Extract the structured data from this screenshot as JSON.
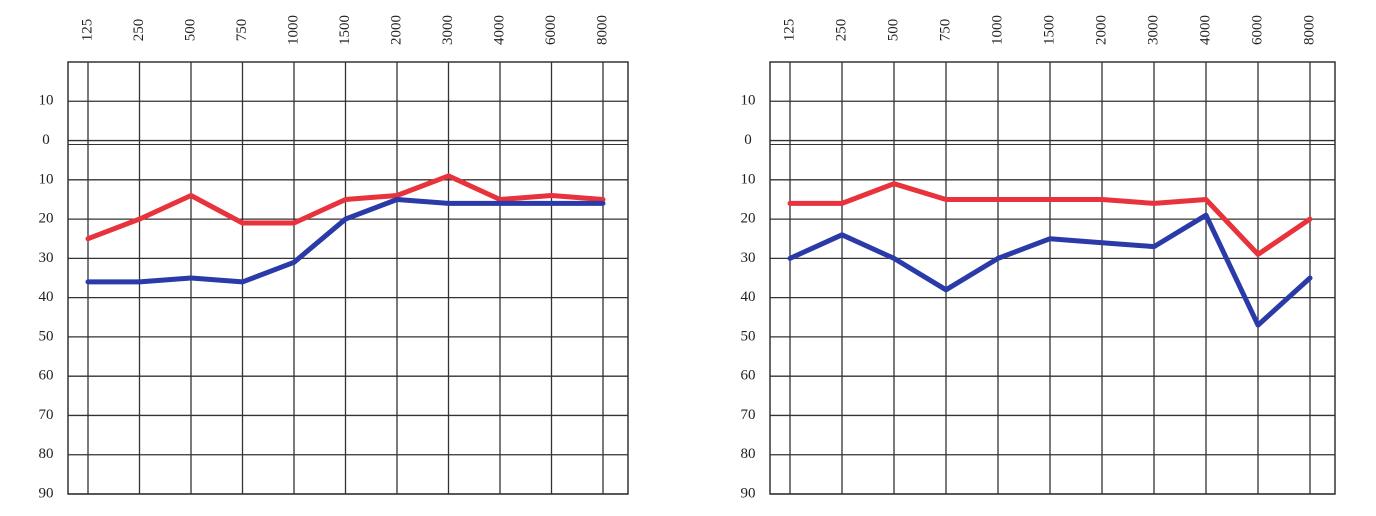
{
  "chart_data": [
    {
      "type": "line",
      "categories": [
        "125",
        "250",
        "500",
        "750",
        "1000",
        "1500",
        "2000",
        "3000",
        "4000",
        "6000",
        "8000"
      ],
      "series": [
        {
          "color": "#e8323c",
          "values": [
            25,
            20,
            14,
            21,
            21,
            15,
            14,
            9,
            15,
            14,
            15
          ]
        },
        {
          "color": "#2a3aa8",
          "values": [
            36,
            36,
            35,
            36,
            31,
            20,
            15,
            16,
            16,
            16,
            16
          ]
        }
      ],
      "ylim": [
        -20,
        90
      ],
      "yticks": [
        {
          "value": -10,
          "label": "10"
        },
        0,
        10,
        20,
        30,
        40,
        50,
        60,
        70,
        80,
        90
      ],
      "y_inverted": true,
      "grid": true
    },
    {
      "type": "line",
      "categories": [
        "125",
        "250",
        "500",
        "750",
        "1000",
        "1500",
        "2000",
        "3000",
        "4000",
        "6000",
        "8000"
      ],
      "series": [
        {
          "color": "#e8323c",
          "values": [
            16,
            16,
            11,
            15,
            15,
            15,
            15,
            16,
            15,
            29,
            20
          ]
        },
        {
          "color": "#2a3aa8",
          "values": [
            30,
            24,
            30,
            38,
            30,
            25,
            26,
            27,
            19,
            47,
            35
          ]
        }
      ],
      "ylim": [
        -20,
        90
      ],
      "yticks": [
        {
          "value": -10,
          "label": "10"
        },
        0,
        10,
        20,
        30,
        40,
        50,
        60,
        70,
        80,
        90
      ],
      "y_inverted": true,
      "grid": true
    }
  ]
}
